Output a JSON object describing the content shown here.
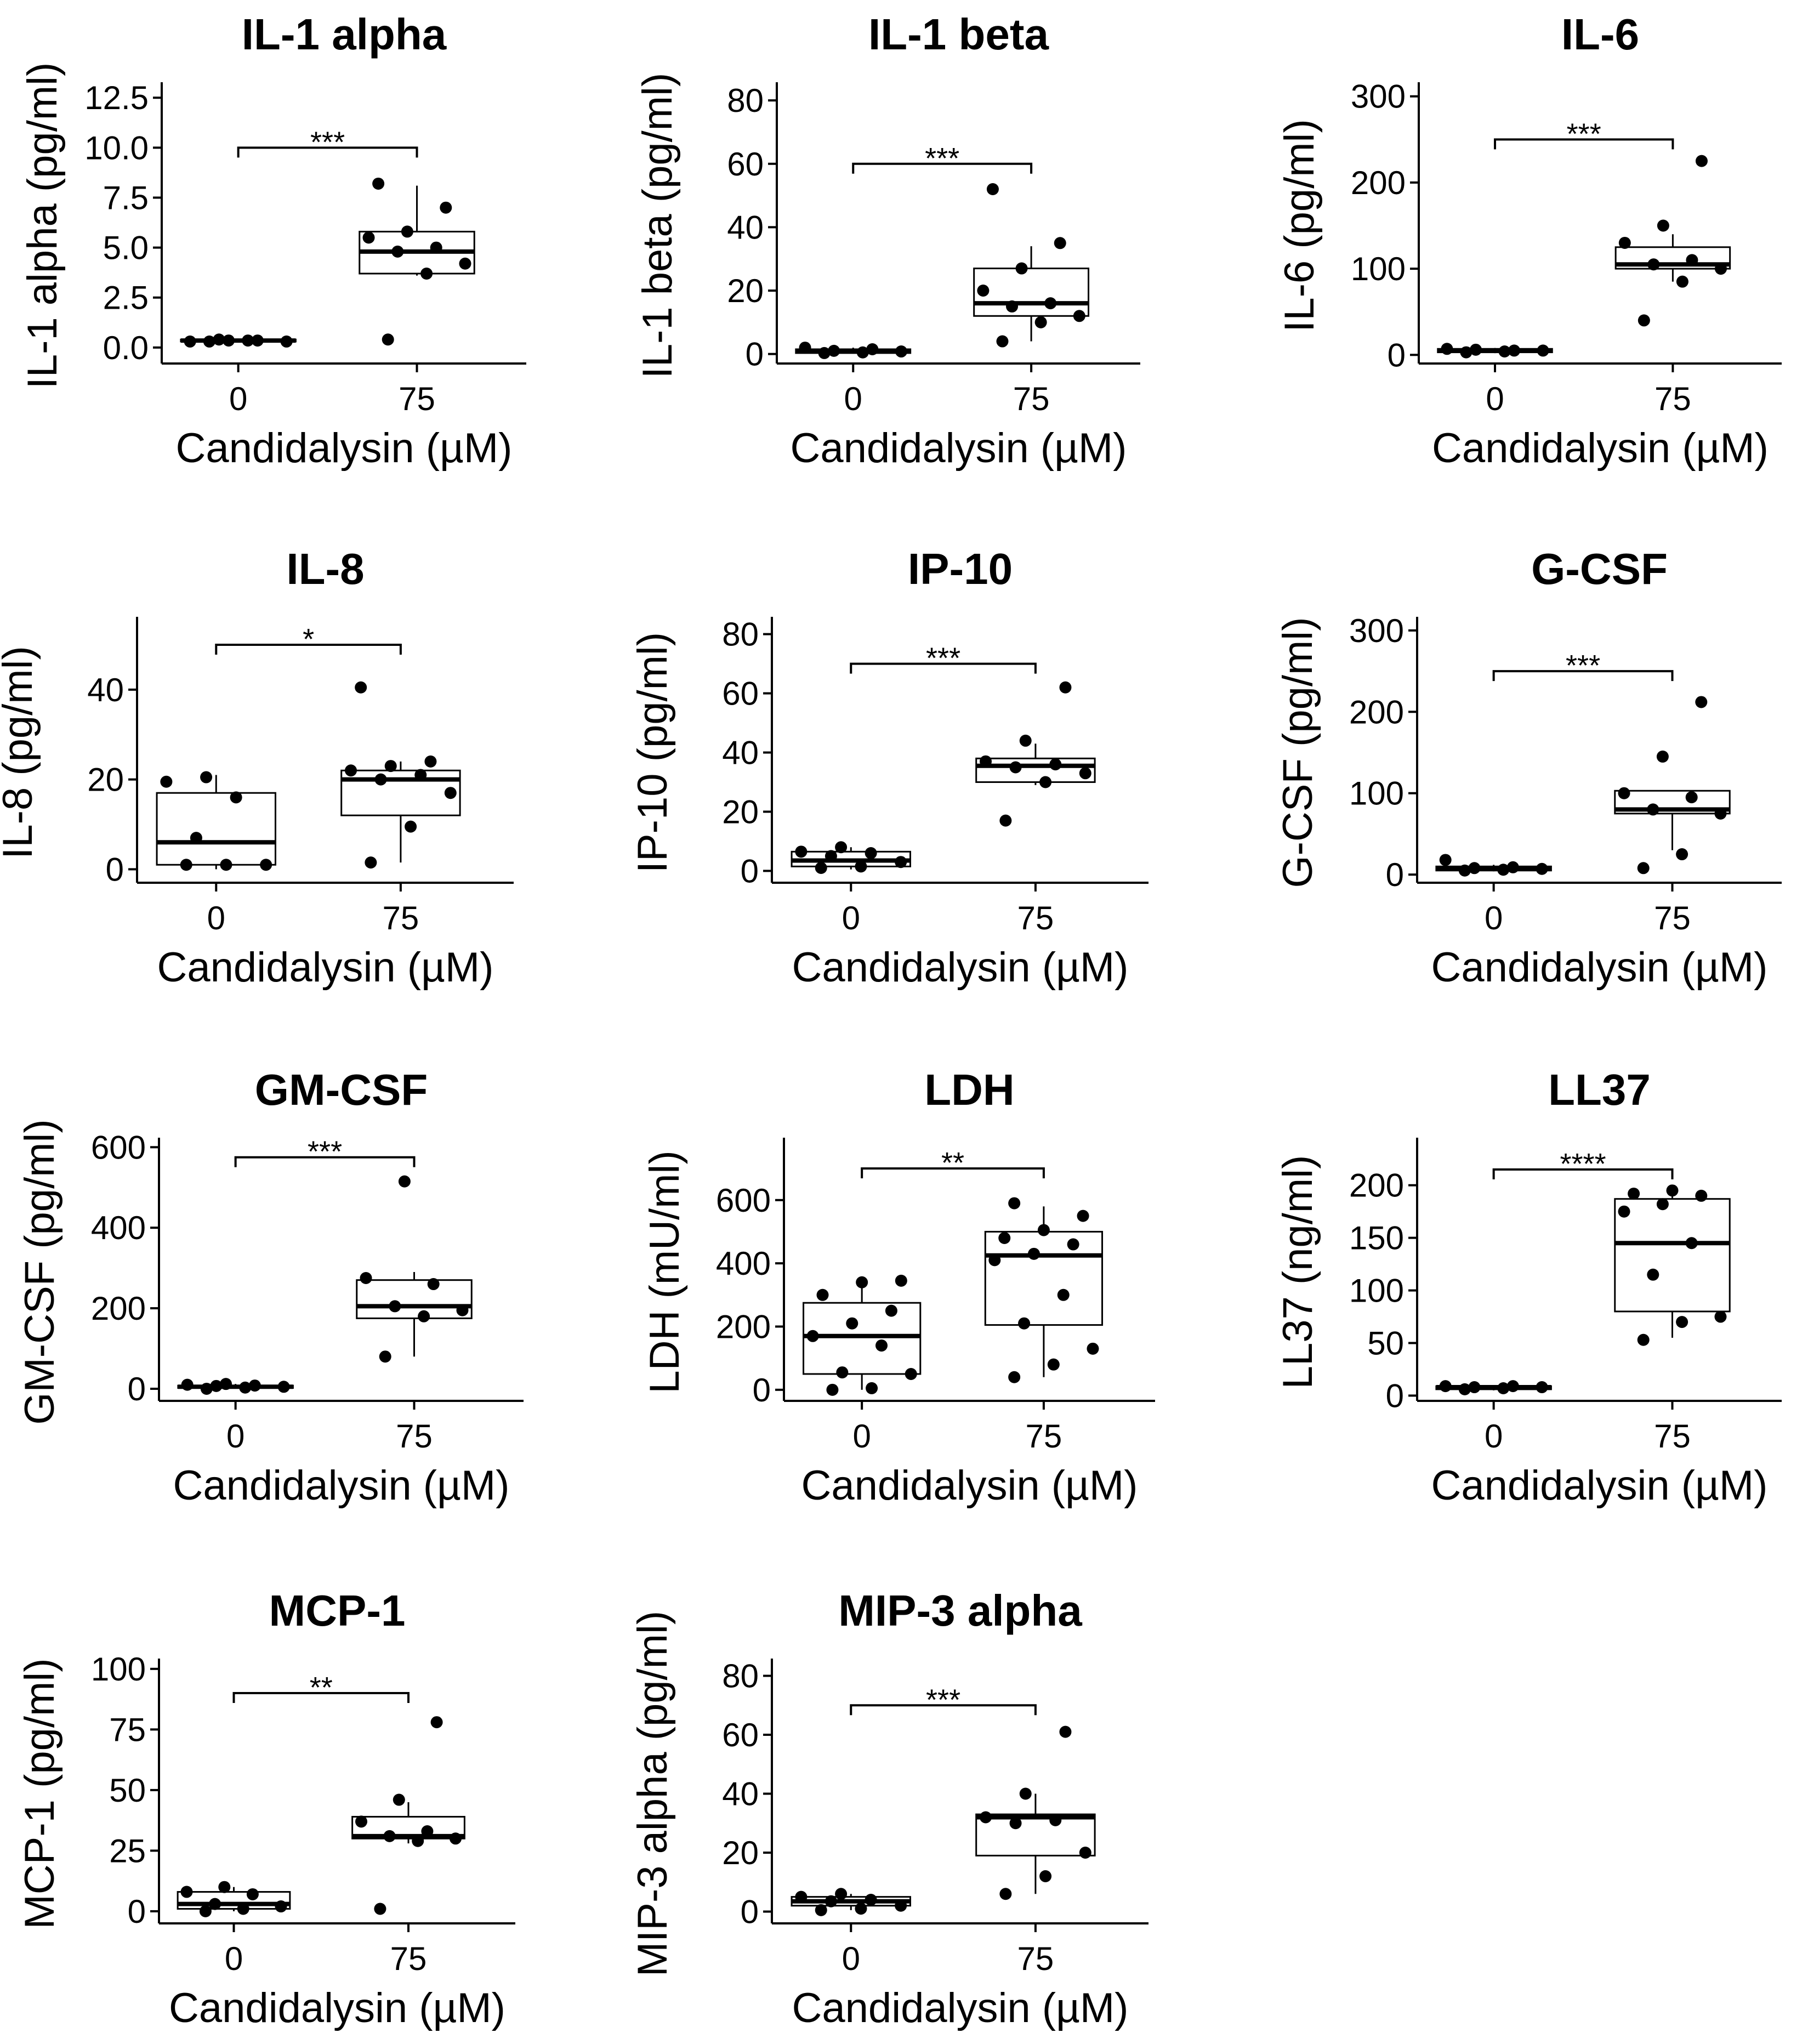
{
  "chart_data": [
    {
      "type": "boxplot",
      "title": "IL-1 alpha",
      "xlabel": "Candidalysin (µM)",
      "ylabel": "IL-1 alpha (pg/ml)",
      "categories": [
        "0",
        "75"
      ],
      "yticks": [
        0,
        2.5,
        5,
        7.5,
        10,
        12.5
      ],
      "ytick_labels": [
        "0.0",
        "2.5",
        "5.0",
        "7.5",
        "10.0",
        "12.5"
      ],
      "ylim": [
        -0.8,
        13
      ],
      "significance": "***",
      "sig_y": 10,
      "boxes": [
        {
          "q1": 0.3,
          "median": 0.35,
          "q3": 0.4,
          "wlo": 0.3,
          "whi": 0.45
        },
        {
          "q1": 3.7,
          "median": 4.8,
          "q3": 5.8,
          "wlo": 3.6,
          "whi": 8.1
        }
      ],
      "points": [
        [
          0.3,
          0.35,
          0.3,
          0.4,
          0.35,
          0.3,
          0.35
        ],
        [
          0.4,
          3.7,
          4.2,
          4.8,
          5.0,
          5.5,
          5.8,
          7.0,
          8.2
        ]
      ]
    },
    {
      "type": "boxplot",
      "title": "IL-1 beta",
      "xlabel": "Candidalysin (µM)",
      "ylabel": "IL-1 beta (pg/ml)",
      "categories": [
        "0",
        "75"
      ],
      "yticks": [
        0,
        20,
        40,
        60,
        80
      ],
      "ytick_labels": [
        "0",
        "20",
        "40",
        "60",
        "80"
      ],
      "ylim": [
        -3,
        84
      ],
      "significance": "***",
      "sig_y": 60,
      "boxes": [
        {
          "q1": 0.3,
          "median": 0.8,
          "q3": 1.5,
          "wlo": 0.1,
          "whi": 2
        },
        {
          "q1": 12,
          "median": 16,
          "q3": 27,
          "wlo": 4,
          "whi": 34
        }
      ],
      "points": [
        [
          0.3,
          0.5,
          0.8,
          1,
          1.5,
          2
        ],
        [
          4,
          10,
          12,
          15,
          16,
          20,
          27,
          35,
          52
        ]
      ]
    },
    {
      "type": "boxplot",
      "title": "IL-6",
      "xlabel": "Candidalysin (µM)",
      "ylabel": "IL-6 (pg/ml)",
      "categories": [
        "0",
        "75"
      ],
      "yticks": [
        0,
        100,
        200,
        300
      ],
      "ytick_labels": [
        "0",
        "100",
        "200",
        "300"
      ],
      "ylim": [
        -10,
        310
      ],
      "significance": "***",
      "sig_y": 250,
      "boxes": [
        {
          "q1": 3,
          "median": 5,
          "q3": 7,
          "wlo": 2,
          "whi": 8
        },
        {
          "q1": 100,
          "median": 105,
          "q3": 125,
          "wlo": 85,
          "whi": 140
        }
      ],
      "points": [
        [
          3,
          4,
          5,
          6,
          5,
          7
        ],
        [
          40,
          85,
          100,
          105,
          110,
          130,
          150,
          225
        ]
      ]
    },
    {
      "type": "boxplot",
      "title": "IL-8",
      "xlabel": "Candidalysin (µM)",
      "ylabel": "IL-8 (pg/ml)",
      "categories": [
        "0",
        "75"
      ],
      "yticks": [
        0,
        20,
        40
      ],
      "ytick_labels": [
        "0",
        "20",
        "40"
      ],
      "ylim": [
        -3,
        55
      ],
      "significance": "*",
      "sig_y": 50,
      "boxes": [
        {
          "q1": 1,
          "median": 6,
          "q3": 17,
          "wlo": 0,
          "whi": 21
        },
        {
          "q1": 12,
          "median": 20,
          "q3": 22,
          "wlo": 1.5,
          "whi": 24
        }
      ],
      "points": [
        [
          1,
          1,
          1,
          7,
          16,
          19.5,
          20.5
        ],
        [
          1.5,
          9.5,
          17,
          20,
          21,
          22,
          23,
          24,
          40.5
        ]
      ]
    },
    {
      "type": "boxplot",
      "title": "IP-10",
      "xlabel": "Candidalysin (µM)",
      "ylabel": "IP-10 (pg/ml)",
      "categories": [
        "0",
        "75"
      ],
      "yticks": [
        0,
        20,
        40,
        60,
        80
      ],
      "ytick_labels": [
        "0",
        "20",
        "40",
        "60",
        "80"
      ],
      "ylim": [
        -4,
        84
      ],
      "significance": "***",
      "sig_y": 70,
      "boxes": [
        {
          "q1": 1.5,
          "median": 3.5,
          "q3": 6.5,
          "wlo": 0.5,
          "whi": 8
        },
        {
          "q1": 30,
          "median": 35.5,
          "q3": 38,
          "wlo": 29,
          "whi": 43
        }
      ],
      "points": [
        [
          1,
          1.5,
          3,
          5,
          6,
          6.5,
          8
        ],
        [
          17,
          30,
          33,
          35,
          36,
          37,
          44,
          62
        ]
      ]
    },
    {
      "type": "boxplot",
      "title": "G-CSF",
      "xlabel": "Candidalysin (µM)",
      "ylabel": "G-CSF (pg/ml)",
      "categories": [
        "0",
        "75"
      ],
      "yticks": [
        0,
        100,
        200,
        300
      ],
      "ytick_labels": [
        "0",
        "100",
        "200",
        "300"
      ],
      "ylim": [
        -10,
        310
      ],
      "significance": "***",
      "sig_y": 250,
      "boxes": [
        {
          "q1": 5,
          "median": 8,
          "q3": 10,
          "wlo": 4,
          "whi": 12
        },
        {
          "q1": 75,
          "median": 80,
          "q3": 103,
          "wlo": 30,
          "whi": 103
        }
      ],
      "points": [
        [
          5,
          6,
          7,
          8,
          9,
          18
        ],
        [
          8,
          25,
          75,
          80,
          95,
          100,
          145,
          212
        ]
      ]
    },
    {
      "type": "boxplot",
      "title": "GM-CSF",
      "xlabel": "Candidalysin (µM)",
      "ylabel": "GM-CSF (pg/ml)",
      "categories": [
        "0",
        "75"
      ],
      "yticks": [
        0,
        200,
        400,
        600
      ],
      "ytick_labels": [
        "0",
        "200",
        "400",
        "600"
      ],
      "ylim": [
        -30,
        610
      ],
      "significance": "***",
      "sig_y": 575,
      "boxes": [
        {
          "q1": 2,
          "median": 5,
          "q3": 8,
          "wlo": 0,
          "whi": 12
        },
        {
          "q1": 175,
          "median": 205,
          "q3": 270,
          "wlo": 80,
          "whi": 290
        }
      ],
      "points": [
        [
          0,
          3,
          5,
          7,
          8,
          10,
          12
        ],
        [
          80,
          180,
          195,
          205,
          260,
          275,
          515
        ]
      ]
    },
    {
      "type": "boxplot",
      "title": "LDH",
      "xlabel": "Candidalysin (µM)",
      "ylabel": "LDH (mU/ml)",
      "categories": [
        "0",
        "75"
      ],
      "yticks": [
        0,
        200,
        400,
        600
      ],
      "ytick_labels": [
        "0",
        "200",
        "400",
        "600"
      ],
      "ylim": [
        -35,
        780
      ],
      "significance": "**",
      "sig_y": 700,
      "boxes": [
        {
          "q1": 50,
          "median": 170,
          "q3": 275,
          "wlo": 0,
          "whi": 330
        },
        {
          "q1": 205,
          "median": 425,
          "q3": 500,
          "wlo": 40,
          "whi": 580
        }
      ],
      "points": [
        [
          0,
          5,
          50,
          55,
          140,
          170,
          210,
          250,
          300,
          340,
          345
        ],
        [
          40,
          80,
          130,
          210,
          300,
          410,
          430,
          460,
          480,
          505,
          550,
          590
        ]
      ]
    },
    {
      "type": "boxplot",
      "title": "LL37",
      "xlabel": "Candidalysin (µM)",
      "ylabel": "LL37 (ng/ml)",
      "categories": [
        "0",
        "75"
      ],
      "yticks": [
        0,
        50,
        100,
        150,
        200
      ],
      "ytick_labels": [
        "0",
        "50",
        "100",
        "150",
        "200"
      ],
      "ylim": [
        -5,
        240
      ],
      "significance": "****",
      "sig_y": 215,
      "boxes": [
        {
          "q1": 6,
          "median": 8,
          "q3": 9,
          "wlo": 5,
          "whi": 10
        },
        {
          "q1": 80,
          "median": 145,
          "q3": 187,
          "wlo": 55,
          "whi": 195
        }
      ],
      "points": [
        [
          6,
          7,
          8,
          8,
          9,
          9
        ],
        [
          53,
          70,
          75,
          115,
          145,
          175,
          182,
          190,
          192,
          195
        ]
      ]
    },
    {
      "type": "boxplot",
      "title": "MCP-1",
      "xlabel": "Candidalysin (µM)",
      "ylabel": "MCP-1 (pg/ml)",
      "categories": [
        "0",
        "75"
      ],
      "yticks": [
        0,
        25,
        50,
        75,
        100
      ],
      "ytick_labels": [
        "0",
        "25",
        "50",
        "75",
        "100"
      ],
      "ylim": [
        -5,
        102
      ],
      "significance": "**",
      "sig_y": 90,
      "boxes": [
        {
          "q1": 1,
          "median": 3,
          "q3": 8,
          "wlo": 0,
          "whi": 10
        },
        {
          "q1": 30,
          "median": 31,
          "q3": 39,
          "wlo": 28,
          "whi": 45
        }
      ],
      "points": [
        [
          0,
          1,
          2,
          3,
          7,
          8,
          10
        ],
        [
          1,
          29,
          30,
          31,
          33,
          37,
          46,
          78
        ]
      ]
    },
    {
      "type": "boxplot",
      "title": "MIP-3 alpha",
      "xlabel": "Candidalysin (µM)",
      "ylabel": "MIP-3 alpha (pg/ml)",
      "categories": [
        "0",
        "75"
      ],
      "yticks": [
        0,
        20,
        40,
        60,
        80
      ],
      "ytick_labels": [
        "0",
        "20",
        "40",
        "60",
        "80"
      ],
      "ylim": [
        -4,
        84
      ],
      "significance": "***",
      "sig_y": 70,
      "boxes": [
        {
          "q1": 2,
          "median": 3.5,
          "q3": 5,
          "wlo": 0.5,
          "whi": 6
        },
        {
          "q1": 19,
          "median": 32,
          "q3": 33,
          "wlo": 6,
          "whi": 40
        }
      ],
      "points": [
        [
          0.5,
          1,
          2,
          3.5,
          4,
          5,
          6
        ],
        [
          6,
          12,
          20,
          30,
          31,
          32,
          40,
          61
        ]
      ]
    }
  ]
}
